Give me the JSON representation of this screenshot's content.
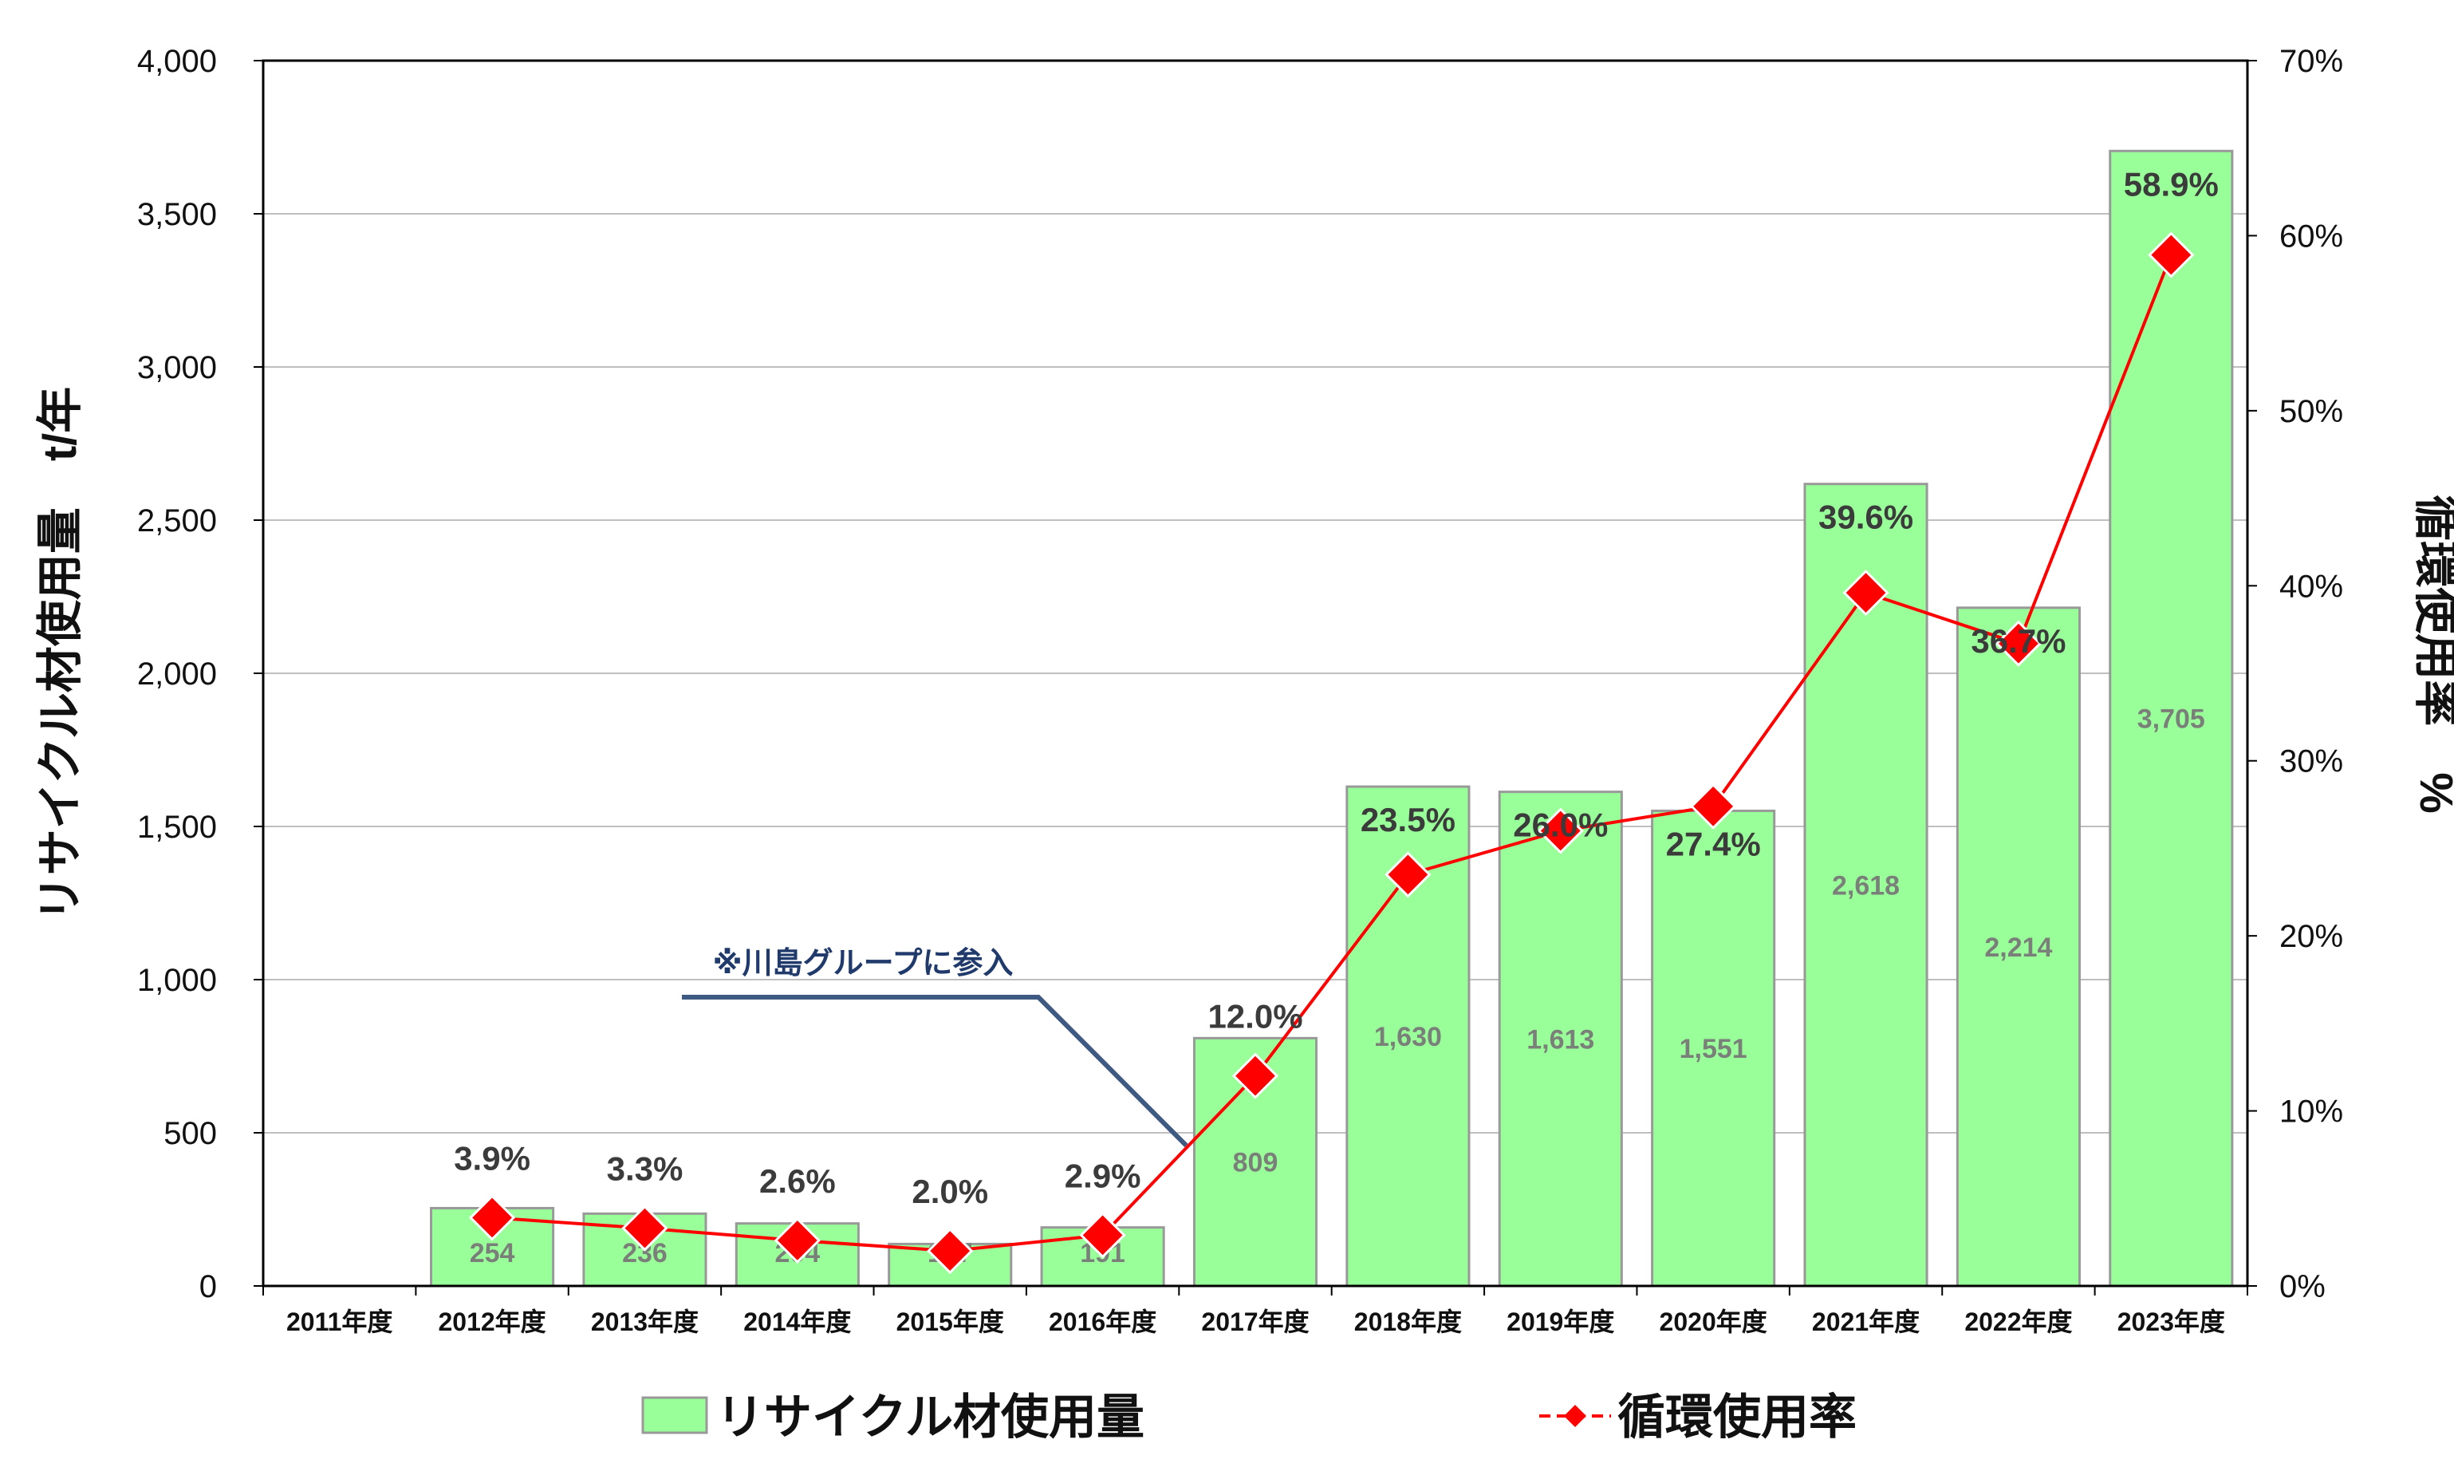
{
  "chart_data": {
    "type": "bar",
    "categories": [
      "2011年度",
      "2012年度",
      "2013年度",
      "2014年度",
      "2015年度",
      "2016年度",
      "2017年度",
      "2018年度",
      "2019年度",
      "2020年度",
      "2021年度",
      "2022年度",
      "2023年度"
    ],
    "series": [
      {
        "name": "リサイクル材使用量",
        "type": "bar",
        "axis": "left",
        "color": "#99ff99",
        "border_color": "#999999",
        "values": [
          null,
          254,
          236,
          204,
          137,
          191,
          809,
          1630,
          1613,
          1551,
          2618,
          2214,
          3705
        ],
        "labels": [
          "",
          "254",
          "236",
          "204",
          "137",
          "191",
          "809",
          "1,630",
          "1,613",
          "1,551",
          "2,618",
          "2,214",
          "3,705"
        ]
      },
      {
        "name": "循環使用率",
        "type": "line",
        "axis": "right",
        "color": "#ff0000",
        "dashed_in_legend": true,
        "values": [
          null,
          3.9,
          3.3,
          2.6,
          2.0,
          2.9,
          12.0,
          23.5,
          26.0,
          27.4,
          39.6,
          36.7,
          58.9
        ],
        "labels": [
          "",
          "3.9%",
          "3.3%",
          "2.6%",
          "2.0%",
          "2.9%",
          "12.0%",
          "23.5%",
          "26.0%",
          "27.4%",
          "39.6%",
          "36.7%",
          "58.9%"
        ]
      }
    ],
    "y_left": {
      "label": "リサイクル材使用量　t/年",
      "min": 0,
      "max": 4000,
      "step": 500,
      "tick_labels": [
        "0",
        "500",
        "1,000",
        "1,500",
        "2,000",
        "2,500",
        "3,000",
        "3,500",
        "4,000"
      ]
    },
    "y_right": {
      "label": "循環使用率　%",
      "min": 0,
      "max": 70,
      "step": 10,
      "tick_labels": [
        "0%",
        "10%",
        "20%",
        "30%",
        "40%",
        "50%",
        "60%",
        "70%"
      ]
    },
    "grid": true,
    "legend": {
      "position": "bottom"
    },
    "annotation": {
      "text": "※川島グループに参入",
      "target_category": "2017年度"
    }
  }
}
